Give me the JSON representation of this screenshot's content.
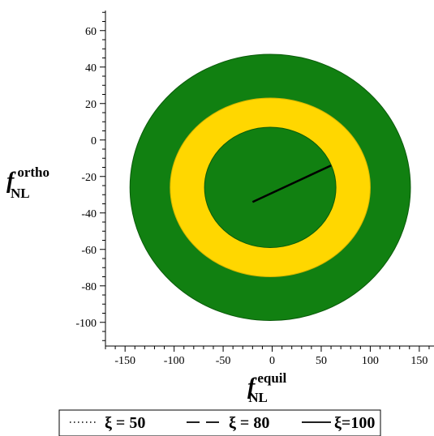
{
  "chart_data": {
    "type": "area",
    "title": "",
    "xlabel": {
      "main": "f",
      "superscript": "equil",
      "subscript": "NL"
    },
    "ylabel": {
      "main": "f",
      "superscript": "ortho",
      "subscript": "NL"
    },
    "xlim": [
      -170,
      165
    ],
    "ylim": [
      -113,
      71
    ],
    "xticks": [
      -150,
      -100,
      -50,
      0,
      50,
      100,
      150
    ],
    "yticks": [
      -100,
      -80,
      -60,
      -40,
      -20,
      0,
      20,
      40,
      60
    ],
    "x_minor_step": 10,
    "y_minor_step": 5,
    "grid": false,
    "regions": [
      {
        "shape": "ellipse",
        "cx": -2,
        "cy": -26,
        "rx": 143,
        "ry": 73,
        "color": "#118011",
        "stroke": "#0a5a0a"
      },
      {
        "shape": "ellipse",
        "cx": -2,
        "cy": -26,
        "rx": 102,
        "ry": 49,
        "color": "#ffd700",
        "stroke": "#d8b600"
      },
      {
        "shape": "ellipse",
        "cx": -2,
        "cy": -26,
        "rx": 67,
        "ry": 33,
        "color": "#118011",
        "stroke": "#0a5a0a"
      }
    ],
    "segment": {
      "x": [
        -20,
        60
      ],
      "y": [
        -34,
        -14
      ],
      "color": "#000000"
    },
    "legend": {
      "position": "bottom",
      "entries": [
        {
          "label": "ξ = 50",
          "style": "dotted"
        },
        {
          "label": "ξ = 80",
          "style": "dashed"
        },
        {
          "label": "ξ=100",
          "style": "solid"
        }
      ]
    }
  }
}
